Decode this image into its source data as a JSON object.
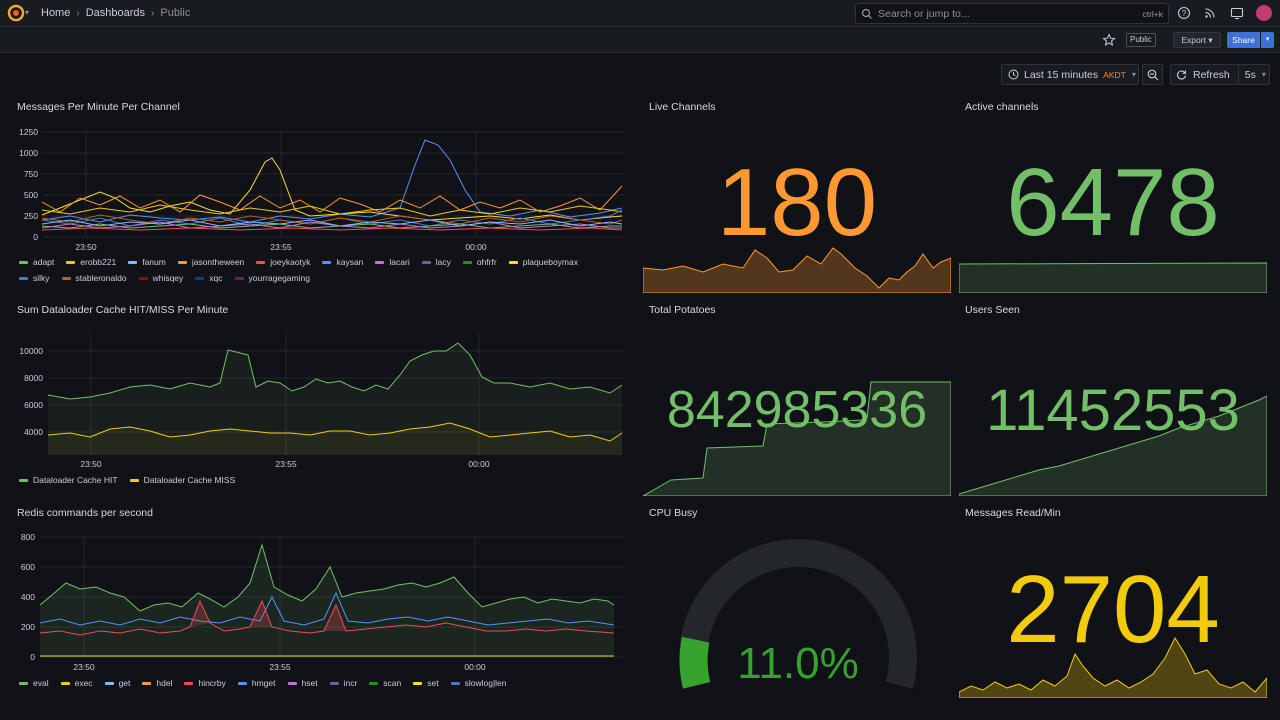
{
  "breadcrumb": {
    "home": "Home",
    "dashboards": "Dashboards",
    "current": "Public"
  },
  "search": {
    "placeholder": "Search or jump to...",
    "shortcut": "ctrl+k"
  },
  "toolbar": {
    "public_badge": "Public",
    "export_label": "Export",
    "share_label": "Share"
  },
  "timepicker": {
    "range": "Last 15 minutes",
    "timezone": "AKDT",
    "refresh_label": "Refresh",
    "interval": "5s"
  },
  "colors": {
    "green": "#73bf69",
    "orange": "#ff9830",
    "yellow": "#f2cc0c",
    "gauge_green": "#37a32e",
    "accent_blue": "#3d71d9"
  },
  "panels": {
    "messages_per_minute": {
      "title": "Messages Per Minute Per Channel",
      "yticks": [
        "1250",
        "1000",
        "750",
        "500",
        "250",
        "0"
      ],
      "xticks": [
        "23:50",
        "23:55",
        "00:00"
      ],
      "legend": [
        {
          "name": "adapt",
          "color": "#73bf69"
        },
        {
          "name": "erobb221",
          "color": "#f2cc0c"
        },
        {
          "name": "fanum",
          "color": "#8ab8ff"
        },
        {
          "name": "jasontheween",
          "color": "#ff9830"
        },
        {
          "name": "joeykaotyk",
          "color": "#f2495c"
        },
        {
          "name": "kaysan",
          "color": "#5794f2"
        },
        {
          "name": "lacari",
          "color": "#b877d9"
        },
        {
          "name": "lacy",
          "color": "#705da0"
        },
        {
          "name": "ohfrfr",
          "color": "#37872d"
        },
        {
          "name": "plaqueboymax",
          "color": "#fade2a"
        },
        {
          "name": "silky",
          "color": "#447ebc"
        },
        {
          "name": "stableronaldo",
          "color": "#c15c17"
        },
        {
          "name": "whisqey",
          "color": "#890f02"
        },
        {
          "name": "xqc",
          "color": "#0a437c"
        },
        {
          "name": "yourragegaming",
          "color": "#6d1f62"
        }
      ]
    },
    "dataloader": {
      "title": "Sum Dataloader Cache HIT/MISS Per Minute",
      "yticks": [
        "10000",
        "8000",
        "6000",
        "4000"
      ],
      "xticks": [
        "23:50",
        "23:55",
        "00:00"
      ],
      "legend": [
        {
          "name": "Dataloader Cache HIT",
          "color": "#73bf69"
        },
        {
          "name": "Dataloader Cache MISS",
          "color": "#f2cc0c"
        }
      ]
    },
    "redis": {
      "title": "Redis commands per second",
      "yticks": [
        "800",
        "600",
        "400",
        "200",
        "0"
      ],
      "xticks": [
        "23:50",
        "23:55",
        "00:00"
      ],
      "legend": [
        {
          "name": "eval",
          "color": "#73bf69"
        },
        {
          "name": "exec",
          "color": "#f2cc0c"
        },
        {
          "name": "get",
          "color": "#8ab8ff"
        },
        {
          "name": "hdel",
          "color": "#ff9830"
        },
        {
          "name": "hincrby",
          "color": "#f2495c"
        },
        {
          "name": "hmget",
          "color": "#5794f2"
        },
        {
          "name": "hset",
          "color": "#b877d9"
        },
        {
          "name": "incr",
          "color": "#705da0"
        },
        {
          "name": "scan",
          "color": "#37872d"
        },
        {
          "name": "set",
          "color": "#fade2a"
        },
        {
          "name": "slowlog|len",
          "color": "#447ebc"
        }
      ]
    },
    "live_channels": {
      "title": "Live Channels",
      "value": "180",
      "color": "#ff9830"
    },
    "active_channels": {
      "title": "Active channels",
      "value": "6478",
      "color": "#73bf69"
    },
    "total_potatoes": {
      "title": "Total Potatoes",
      "value": "842985336",
      "color": "#73bf69"
    },
    "users_seen": {
      "title": "Users Seen",
      "value": "11452553",
      "color": "#73bf69"
    },
    "cpu_busy": {
      "title": "CPU Busy",
      "value": "11.0%",
      "percent": 11.0,
      "color": "#37a32e"
    },
    "messages_read": {
      "title": "Messages Read/Min",
      "value": "2704",
      "color": "#f2cc0c"
    }
  }
}
